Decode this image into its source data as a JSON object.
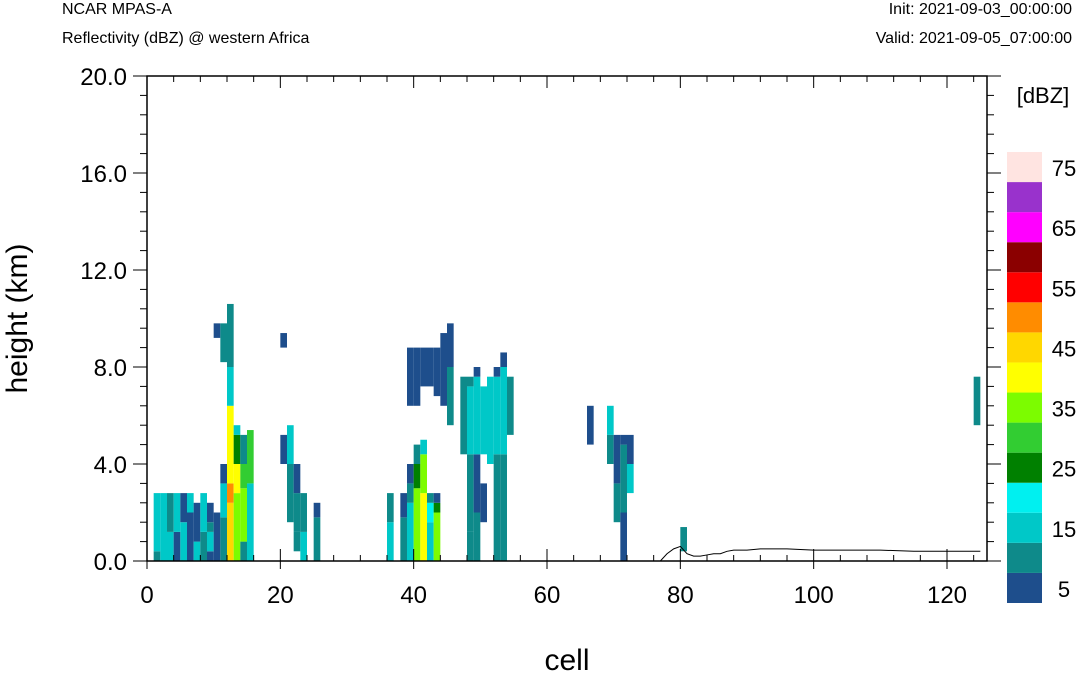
{
  "header": {
    "model": "NCAR MPAS-A",
    "variable": "Reflectivity (dBZ) @ western Africa",
    "init": "Init: 2021-09-03_00:00:00",
    "valid": "Valid: 2021-09-05_07:00:00"
  },
  "chart_data": {
    "type": "heatmap",
    "title": "Reflectivity (dBZ) @ western Africa",
    "xlabel": "cell",
    "ylabel": "height (km)",
    "xlim": [
      0,
      126
    ],
    "ylim": [
      0,
      20
    ],
    "x_ticks": [
      0,
      20,
      40,
      60,
      80,
      100,
      120
    ],
    "y_ticks": [
      0.0,
      4.0,
      8.0,
      12.0,
      16.0,
      20.0
    ],
    "y_tick_labels": [
      "0.0",
      "4.0",
      "8.0",
      "12.0",
      "16.0",
      "20.0"
    ],
    "colorbar": {
      "title": "[dBZ]",
      "levels": [
        5,
        10,
        15,
        20,
        25,
        30,
        35,
        40,
        45,
        50,
        55,
        60,
        65,
        70,
        75
      ],
      "labels": [
        "5",
        "15",
        "25",
        "35",
        "45",
        "55",
        "65",
        "75"
      ],
      "colors": [
        "#1e4e8c",
        "#0e8a8a",
        "#00c8c8",
        "#00f0f0",
        "#008000",
        "#32cd32",
        "#7cfc00",
        "#ffff00",
        "#ffd700",
        "#ff8c00",
        "#ff0000",
        "#8b0000",
        "#ff00ff",
        "#9932cc",
        "#ffe4e1"
      ]
    },
    "columns": [
      {
        "x": 1,
        "cells": [
          [
            0.0,
            0.4,
            10
          ],
          [
            0.4,
            2.8,
            15
          ]
        ]
      },
      {
        "x": 2,
        "cells": [
          [
            0.0,
            2.8,
            15
          ]
        ]
      },
      {
        "x": 3,
        "cells": [
          [
            0.0,
            1.2,
            15
          ],
          [
            1.2,
            2.8,
            10
          ]
        ]
      },
      {
        "x": 4,
        "cells": [
          [
            0.0,
            1.2,
            5
          ],
          [
            1.2,
            2.8,
            15
          ]
        ]
      },
      {
        "x": 5,
        "cells": [
          [
            0.0,
            1.6,
            15
          ],
          [
            1.6,
            2.8,
            5
          ]
        ]
      },
      {
        "x": 6,
        "cells": [
          [
            0.0,
            2.0,
            5
          ],
          [
            2.0,
            2.8,
            15
          ]
        ]
      },
      {
        "x": 7,
        "cells": [
          [
            0.0,
            0.8,
            15
          ],
          [
            0.8,
            2.4,
            5
          ]
        ]
      },
      {
        "x": 8,
        "cells": [
          [
            0.0,
            1.2,
            10
          ],
          [
            1.2,
            2.8,
            15
          ]
        ]
      },
      {
        "x": 9,
        "cells": [
          [
            0.0,
            0.4,
            5
          ],
          [
            0.4,
            1.2,
            15
          ],
          [
            1.2,
            1.6,
            10
          ],
          [
            1.6,
            2.4,
            5
          ]
        ]
      },
      {
        "x": 10,
        "cells": [
          [
            0.0,
            2.0,
            5
          ],
          [
            9.2,
            9.8,
            5
          ]
        ]
      },
      {
        "x": 11,
        "cells": [
          [
            0.0,
            1.8,
            10
          ],
          [
            1.8,
            3.2,
            15
          ],
          [
            3.2,
            4.0,
            5
          ],
          [
            8.2,
            9.8,
            10
          ]
        ]
      },
      {
        "x": 12,
        "cells": [
          [
            0.0,
            2.4,
            45
          ],
          [
            2.4,
            3.2,
            50
          ],
          [
            3.2,
            6.4,
            40
          ],
          [
            6.4,
            8.0,
            15
          ],
          [
            8.0,
            10.6,
            10
          ]
        ]
      },
      {
        "x": 13,
        "cells": [
          [
            0.0,
            2.8,
            35
          ],
          [
            2.8,
            4.0,
            40
          ],
          [
            4.0,
            5.2,
            25
          ],
          [
            5.2,
            5.6,
            15
          ]
        ]
      },
      {
        "x": 14,
        "cells": [
          [
            0.0,
            0.8,
            10
          ],
          [
            0.8,
            3.0,
            35
          ],
          [
            3.0,
            4.0,
            30
          ],
          [
            4.0,
            5.2,
            10
          ]
        ]
      },
      {
        "x": 15,
        "cells": [
          [
            0.0,
            3.2,
            15
          ],
          [
            3.2,
            5.4,
            30
          ]
        ]
      },
      {
        "x": 20,
        "cells": [
          [
            4.0,
            5.2,
            5
          ],
          [
            8.8,
            9.4,
            5
          ]
        ]
      },
      {
        "x": 21,
        "cells": [
          [
            1.6,
            4.0,
            10
          ],
          [
            4.0,
            5.6,
            15
          ]
        ]
      },
      {
        "x": 22,
        "cells": [
          [
            0.4,
            1.2,
            10
          ],
          [
            1.2,
            2.8,
            10
          ],
          [
            2.8,
            4.0,
            5
          ]
        ]
      },
      {
        "x": 23,
        "cells": [
          [
            0.0,
            1.2,
            15
          ],
          [
            1.2,
            2.8,
            10
          ]
        ]
      },
      {
        "x": 25,
        "cells": [
          [
            0.0,
            1.8,
            10
          ],
          [
            1.8,
            2.4,
            5
          ]
        ]
      },
      {
        "x": 36,
        "cells": [
          [
            0.0,
            1.6,
            15
          ],
          [
            1.6,
            2.8,
            10
          ]
        ]
      },
      {
        "x": 38,
        "cells": [
          [
            0.0,
            1.8,
            10
          ],
          [
            1.8,
            2.8,
            5
          ]
        ]
      },
      {
        "x": 39,
        "cells": [
          [
            0.0,
            2.4,
            15
          ],
          [
            2.4,
            3.2,
            10
          ],
          [
            3.2,
            4.0,
            5
          ],
          [
            6.4,
            8.8,
            5
          ]
        ]
      },
      {
        "x": 40,
        "cells": [
          [
            0.0,
            3.0,
            35
          ],
          [
            3.0,
            4.0,
            25
          ],
          [
            4.0,
            4.8,
            10
          ],
          [
            6.4,
            8.8,
            5
          ]
        ]
      },
      {
        "x": 41,
        "cells": [
          [
            0.0,
            2.8,
            40
          ],
          [
            2.8,
            4.4,
            35
          ],
          [
            4.4,
            5.0,
            15
          ],
          [
            7.2,
            8.8,
            5
          ]
        ]
      },
      {
        "x": 42,
        "cells": [
          [
            0.0,
            1.6,
            15
          ],
          [
            1.6,
            2.4,
            20
          ],
          [
            2.4,
            2.8,
            10
          ],
          [
            7.2,
            8.8,
            5
          ]
        ]
      },
      {
        "x": 43,
        "cells": [
          [
            0.0,
            2.0,
            35
          ],
          [
            2.0,
            2.4,
            25
          ],
          [
            2.4,
            2.8,
            5
          ],
          [
            6.8,
            8.8,
            5
          ]
        ]
      },
      {
        "x": 44,
        "cells": [
          [
            6.4,
            8.0,
            5
          ],
          [
            8.0,
            9.4,
            5
          ]
        ]
      },
      {
        "x": 45,
        "cells": [
          [
            5.6,
            8.0,
            10
          ],
          [
            8.0,
            9.8,
            5
          ]
        ]
      },
      {
        "x": 47,
        "cells": [
          [
            4.4,
            7.6,
            10
          ]
        ]
      },
      {
        "x": 48,
        "cells": [
          [
            0.0,
            1.2,
            10
          ],
          [
            1.2,
            4.4,
            10
          ],
          [
            4.4,
            7.2,
            15
          ],
          [
            7.2,
            7.6,
            10
          ]
        ]
      },
      {
        "x": 49,
        "cells": [
          [
            0.0,
            2.0,
            10
          ],
          [
            2.0,
            4.4,
            5
          ],
          [
            4.4,
            7.6,
            15
          ],
          [
            7.6,
            8.0,
            5
          ]
        ]
      },
      {
        "x": 50,
        "cells": [
          [
            1.6,
            3.2,
            5
          ],
          [
            4.4,
            7.2,
            15
          ]
        ]
      },
      {
        "x": 51,
        "cells": [
          [
            4.0,
            7.6,
            15
          ]
        ]
      },
      {
        "x": 52,
        "cells": [
          [
            0.0,
            4.4,
            10
          ],
          [
            4.4,
            7.6,
            15
          ],
          [
            7.6,
            8.0,
            5
          ]
        ]
      },
      {
        "x": 53,
        "cells": [
          [
            0.0,
            4.4,
            10
          ],
          [
            4.4,
            8.0,
            15
          ],
          [
            8.0,
            8.6,
            5
          ]
        ]
      },
      {
        "x": 54,
        "cells": [
          [
            5.2,
            7.6,
            10
          ]
        ]
      },
      {
        "x": 66,
        "cells": [
          [
            4.8,
            6.4,
            5
          ]
        ]
      },
      {
        "x": 69,
        "cells": [
          [
            4.0,
            5.2,
            10
          ],
          [
            5.2,
            6.4,
            15
          ]
        ]
      },
      {
        "x": 70,
        "cells": [
          [
            1.6,
            3.2,
            10
          ],
          [
            3.2,
            5.2,
            5
          ]
        ]
      },
      {
        "x": 71,
        "cells": [
          [
            0.0,
            2.0,
            5
          ],
          [
            2.0,
            4.8,
            10
          ],
          [
            4.8,
            5.2,
            5
          ]
        ]
      },
      {
        "x": 72,
        "cells": [
          [
            2.8,
            4.0,
            15
          ],
          [
            4.0,
            5.2,
            5
          ]
        ]
      },
      {
        "x": 80,
        "cells": [
          [
            0.4,
            1.4,
            10
          ]
        ]
      },
      {
        "x": 124,
        "cells": [
          [
            5.6,
            7.6,
            10
          ]
        ]
      }
    ],
    "terrain": [
      [
        77,
        0.0
      ],
      [
        78,
        0.3
      ],
      [
        79,
        0.5
      ],
      [
        80,
        0.6
      ],
      [
        81,
        0.3
      ],
      [
        82,
        0.2
      ],
      [
        83,
        0.2
      ],
      [
        84,
        0.25
      ],
      [
        85,
        0.3
      ],
      [
        86,
        0.3
      ],
      [
        87,
        0.4
      ],
      [
        88,
        0.45
      ],
      [
        90,
        0.45
      ],
      [
        92,
        0.5
      ],
      [
        94,
        0.5
      ],
      [
        96,
        0.5
      ],
      [
        100,
        0.45
      ],
      [
        105,
        0.45
      ],
      [
        110,
        0.45
      ],
      [
        115,
        0.4
      ],
      [
        120,
        0.4
      ],
      [
        125,
        0.4
      ]
    ]
  }
}
